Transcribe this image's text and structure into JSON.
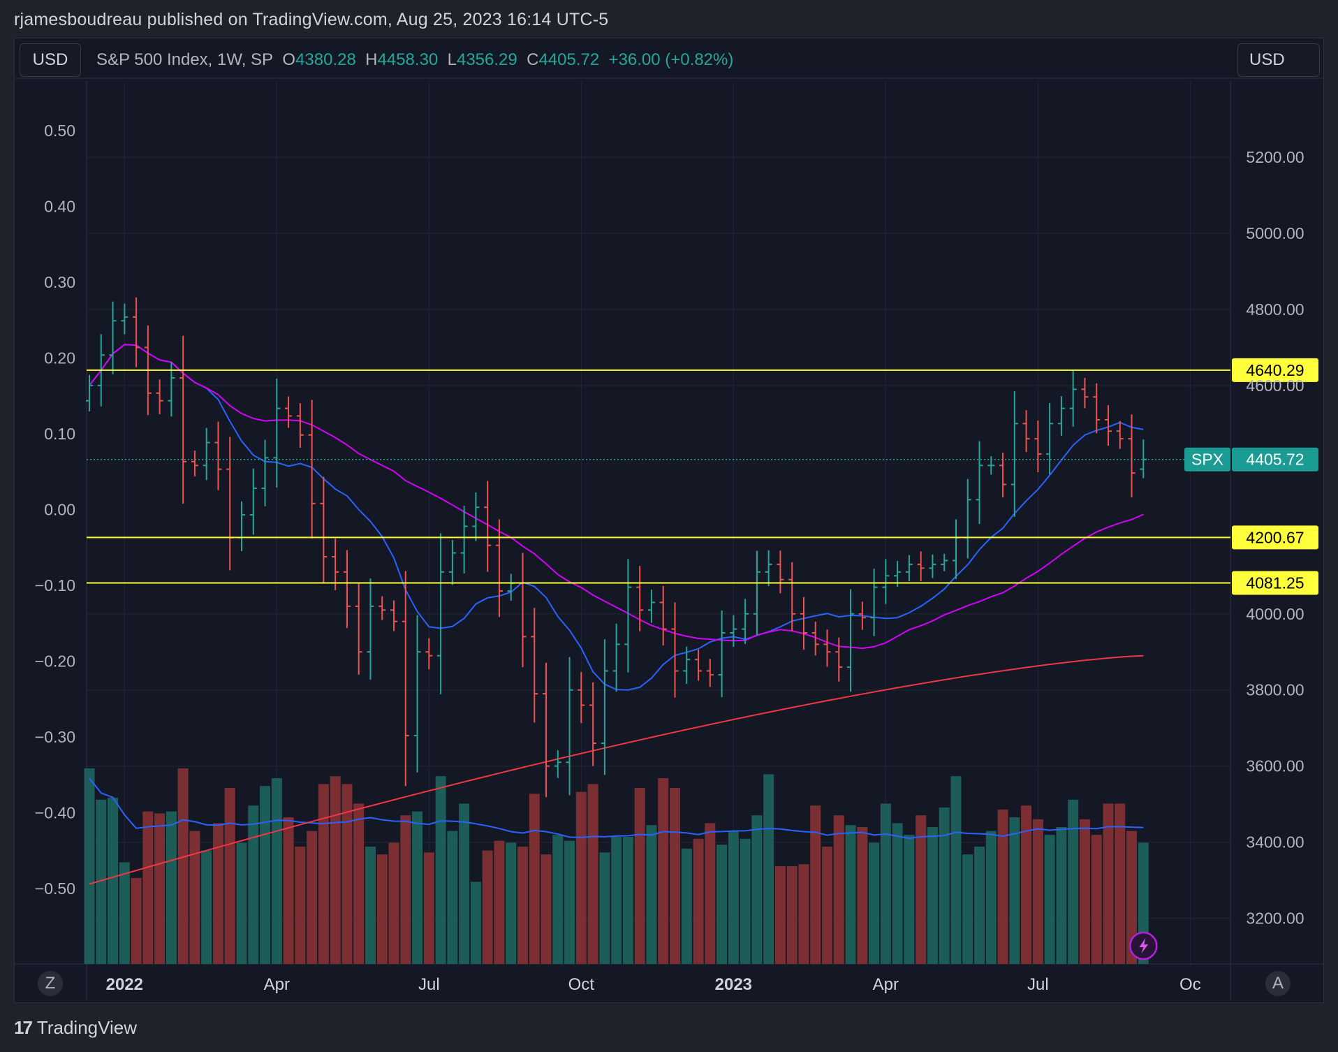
{
  "header": {
    "title": "rjamesboudreau published on TradingView.com, Aug 25, 2023 16:14 UTC-5"
  },
  "toolbar": {
    "currency_left": "USD",
    "currency_right": "USD"
  },
  "legend": {
    "symbol": "S&P 500 Index, 1W, SP",
    "open_label": "O",
    "open": "4380.28",
    "high_label": "H",
    "high": "4458.30",
    "low_label": "L",
    "low": "4356.29",
    "close_label": "C",
    "close": "4405.72",
    "change": "+36.00 (+0.82%)"
  },
  "footer": {
    "brand": "TradingView",
    "left_button": "Z",
    "right_button": "A"
  },
  "colors": {
    "bg": "#141824",
    "up": "#26a69a",
    "down": "#ef5350",
    "yellow": "#ffff3b",
    "ma_short": "#2962ff",
    "ma_mid": "#d500f9",
    "ma_long": "#f23645"
  },
  "chart_data": {
    "type": "ohlc",
    "title": "S&P 500 Index, 1W, SP",
    "interval": "1W",
    "price_axis": {
      "ylim": [
        3080,
        5400
      ],
      "ticks": [
        3200,
        3400,
        3600,
        3800,
        4000,
        4600,
        4800,
        5000,
        5200
      ],
      "tick_labels": [
        "3200.00",
        "3400.00",
        "3600.00",
        "3800.00",
        "4000.00",
        "4600.00",
        "4800.00",
        "5000.00",
        "5200.00"
      ]
    },
    "left_axis": {
      "ticks": [
        0.5,
        0.4,
        0.3,
        0.2,
        0.1,
        0.0,
        -0.1,
        -0.2,
        -0.3,
        -0.4,
        -0.5
      ],
      "tick_labels": [
        "0.50",
        "0.40",
        "0.30",
        "0.20",
        "0.10",
        "0.00",
        "−0.10",
        "−0.20",
        "−0.30",
        "−0.40",
        "−0.50"
      ]
    },
    "x_labels": [
      {
        "label": "2022",
        "bar": 3,
        "bold": true
      },
      {
        "label": "Apr",
        "bar": 16
      },
      {
        "label": "Jul",
        "bar": 29
      },
      {
        "label": "Oct",
        "bar": 42
      },
      {
        "label": "2023",
        "bar": 55,
        "bold": true
      },
      {
        "label": "Apr",
        "bar": 68
      },
      {
        "label": "Jul",
        "bar": 81
      },
      {
        "label": "Oc",
        "bar": 94
      }
    ],
    "bar_count": 91,
    "closes": [
      4600,
      4680,
      4770,
      4780,
      4700,
      4580,
      4560,
      4620,
      4400,
      4390,
      4450,
      4380,
      4200,
      4260,
      4330,
      4410,
      4540,
      4520,
      4470,
      4290,
      4150,
      4110,
      4020,
      3900,
      4020,
      4010,
      3980,
      3680,
      3900,
      3890,
      4110,
      4160,
      4230,
      4280,
      4180,
      4060,
      4080,
      3940,
      3790,
      3600,
      3610,
      3800,
      3760,
      3660,
      3850,
      3920,
      4070,
      4010,
      4030,
      3960,
      3850,
      3880,
      3850,
      3840,
      3950,
      3960,
      4000,
      4110,
      4130,
      4090,
      4000,
      3950,
      3920,
      3900,
      3860,
      4000,
      3990,
      4070,
      4100,
      4110,
      4130,
      4120,
      4130,
      4140,
      4200,
      4300,
      4390,
      4390,
      4340,
      4500,
      4460,
      4420,
      4500,
      4540,
      4590,
      4570,
      4510,
      4480,
      4460,
      4370,
      4405.72
    ],
    "ohlc_recent": {
      "open": 4380.28,
      "high": 4458.3,
      "low": 4356.29,
      "close": 4405.72,
      "change": 36.0,
      "change_pct": 0.82
    },
    "horizontal_lines": [
      {
        "price": 4640.29,
        "label": "4640.29",
        "color": "#ffff3b"
      },
      {
        "price": 4200.67,
        "label": "4200.67",
        "color": "#ffff3b"
      },
      {
        "price": 4081.25,
        "label": "4081.25",
        "color": "#ffff3b"
      }
    ],
    "last_price_label": {
      "symbol": "SPX",
      "price": 4405.72,
      "label": "4405.72"
    },
    "volume": [
      1.0,
      0.84,
      0.85,
      0.52,
      0.44,
      0.78,
      0.77,
      0.78,
      1.0,
      0.68,
      0.58,
      0.72,
      0.9,
      0.62,
      0.81,
      0.91,
      0.95,
      0.75,
      0.6,
      0.68,
      0.92,
      0.96,
      0.92,
      0.82,
      0.6,
      0.56,
      0.62,
      0.76,
      0.78,
      0.57,
      0.96,
      0.68,
      0.82,
      0.42,
      0.58,
      0.63,
      0.62,
      0.6,
      0.87,
      0.56,
      0.66,
      0.63,
      0.88,
      0.92,
      0.57,
      0.65,
      0.65,
      0.9,
      0.71,
      0.95,
      0.9,
      0.59,
      0.64,
      0.72,
      0.61,
      0.68,
      0.64,
      0.76,
      0.97,
      0.5,
      0.5,
      0.51,
      0.81,
      0.6,
      0.76,
      0.71,
      0.7,
      0.62,
      0.82,
      0.72,
      0.66,
      0.76,
      0.7,
      0.8,
      0.96,
      0.56,
      0.6,
      0.68,
      0.79,
      0.75,
      0.81,
      0.74,
      0.66,
      0.7,
      0.84,
      0.74,
      0.66,
      0.82,
      0.82,
      0.68,
      0.62
    ]
  }
}
